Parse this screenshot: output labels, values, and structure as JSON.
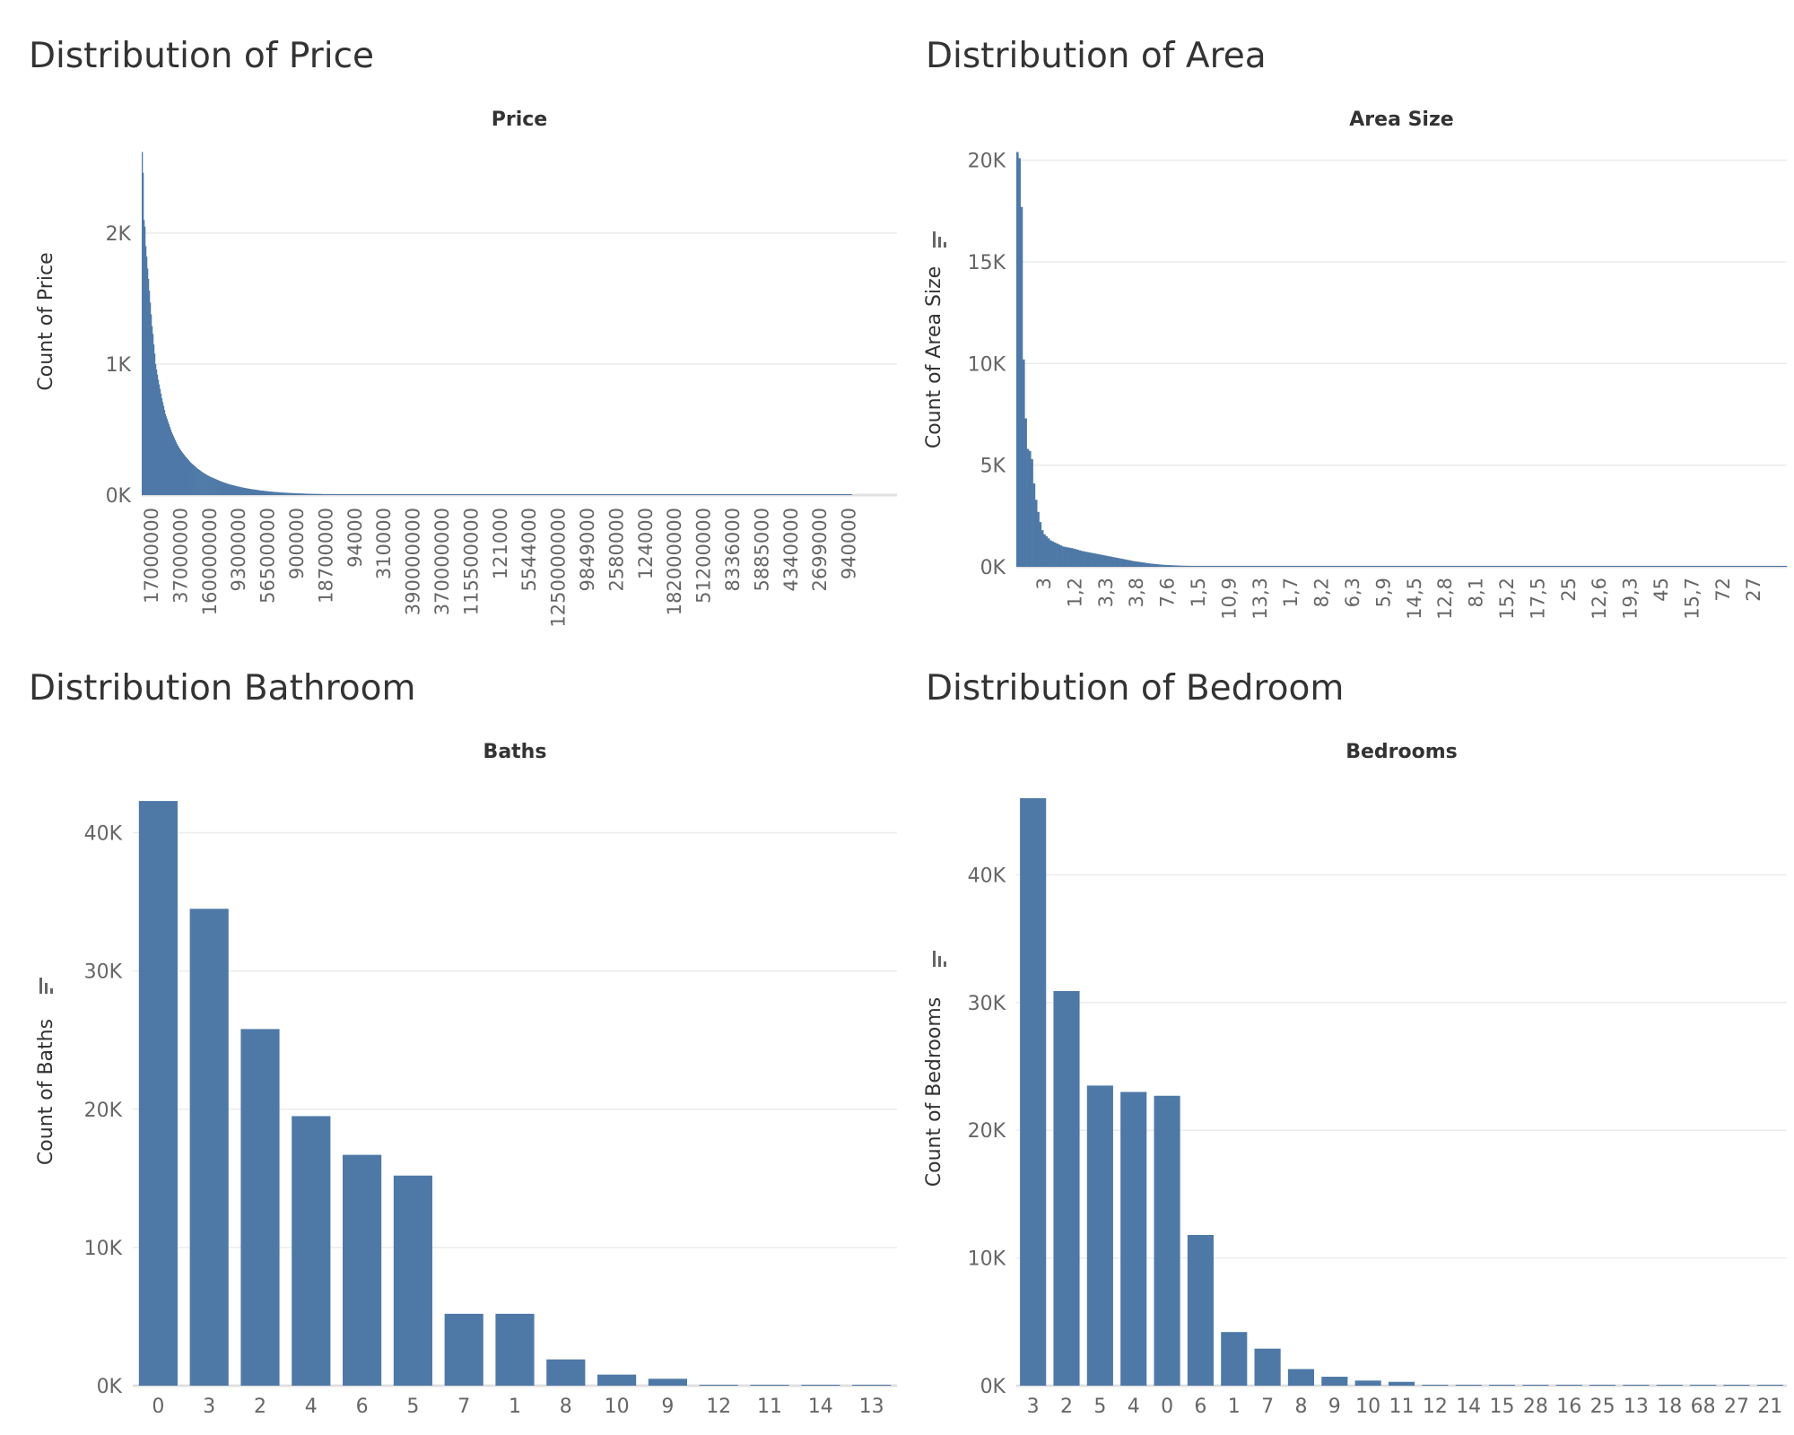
{
  "theme": {
    "bar_color": "#4e79a7",
    "grid_color": "#ebebeb",
    "text_color": "#333333",
    "tick_color": "#666666"
  },
  "chart_data": [
    {
      "panel_title": "Distribution of Price",
      "type": "bar",
      "title": "Price",
      "xlabel": "",
      "ylabel": "Count of Price",
      "ylim": [
        0,
        2650
      ],
      "yticks": [
        0,
        1000,
        2000
      ],
      "ytick_labels": [
        "0K",
        "1K",
        "2K"
      ],
      "sort_icon": false,
      "grid": true,
      "x_tick_labels": [
        "17000000",
        "37000000",
        "160000000",
        "9300000",
        "56500000",
        "900000",
        "18700000",
        "94000",
        "310000",
        "390000000",
        "370000000",
        "115500000",
        "121000",
        "5544000",
        "1250000000",
        "9849000",
        "2580000",
        "124000",
        "182000000",
        "51200000",
        "8336000",
        "5885000",
        "4340000",
        "2699000",
        "940000"
      ],
      "values": [
        2620,
        2460,
        2100,
        2050,
        1900,
        1820,
        1730,
        1650,
        1560,
        1470,
        1380,
        1290,
        1230,
        1150,
        1080,
        1000,
        960,
        920,
        880,
        845,
        810,
        775,
        740,
        710,
        680,
        650,
        620,
        600,
        580,
        560,
        540,
        520,
        500,
        480,
        465,
        450,
        435,
        420,
        405,
        390,
        378,
        366,
        355,
        344,
        334,
        325,
        316,
        307,
        298,
        290,
        282,
        274,
        266,
        258,
        250,
        244,
        238,
        232,
        226,
        220,
        214,
        208,
        202,
        197,
        192,
        187,
        182,
        177,
        172,
        168,
        164,
        160,
        156,
        152,
        148,
        144,
        141,
        138,
        135,
        132,
        129,
        126,
        123,
        120,
        117,
        114,
        111,
        108,
        105,
        103,
        100,
        98,
        95,
        93,
        91,
        88,
        86,
        84,
        82,
        80,
        78,
        76,
        75,
        73,
        71,
        70,
        68,
        66,
        65,
        63,
        62,
        60,
        59,
        57,
        56,
        55,
        53,
        52,
        51,
        50,
        48,
        47,
        46,
        45,
        44,
        43,
        42,
        41,
        40,
        39,
        38,
        37,
        36,
        35,
        34,
        34,
        33,
        32,
        31,
        30,
        30,
        29,
        28,
        28,
        27,
        26,
        26,
        25,
        24,
        24,
        23,
        23,
        22,
        22,
        21,
        21,
        20,
        20,
        19,
        19,
        18,
        18,
        18,
        17,
        17,
        16,
        16,
        16,
        15,
        15,
        15,
        14,
        14,
        14,
        13,
        13,
        13,
        12,
        12,
        12,
        12,
        11,
        11,
        11,
        11,
        10,
        10,
        10,
        10,
        10,
        9,
        9,
        9,
        9,
        9,
        8,
        8,
        8,
        8,
        8,
        8,
        8,
        7,
        7,
        7,
        7,
        7,
        7,
        7,
        6,
        6,
        6,
        6,
        6,
        6,
        6,
        6,
        5,
        5,
        5,
        5,
        5,
        5,
        5,
        5,
        5,
        5,
        4,
        4,
        4,
        4,
        4,
        4,
        4,
        4,
        4,
        4,
        4,
        4,
        3,
        3,
        3,
        3,
        3,
        3,
        3,
        3,
        3,
        3,
        3,
        3,
        3,
        3,
        3,
        3,
        3,
        3,
        3,
        3,
        2,
        2,
        2,
        2,
        2,
        2,
        2,
        2,
        2,
        2,
        2,
        2,
        2,
        2,
        2,
        2,
        2,
        2,
        2,
        2,
        2,
        2,
        2,
        2,
        2,
        2,
        2,
        2,
        2,
        2,
        2,
        2,
        2,
        2,
        2,
        2,
        2,
        2,
        2,
        2,
        1,
        1,
        1,
        1,
        1,
        1,
        1,
        1,
        1,
        1,
        1,
        1,
        1,
        1,
        1,
        1,
        1,
        1,
        1,
        1,
        1,
        1,
        1,
        1,
        1,
        1,
        1,
        1,
        1,
        1,
        1,
        1,
        1,
        1,
        1,
        1,
        1,
        1,
        1,
        1,
        1,
        1,
        1,
        1,
        1,
        1,
        1,
        1,
        1,
        1,
        1,
        1,
        1,
        1,
        1,
        1,
        1,
        1,
        1,
        1,
        1,
        1,
        1,
        1,
        1,
        1,
        1,
        1,
        1,
        1,
        1,
        1,
        1,
        1,
        1,
        1,
        1,
        1,
        1,
        1,
        1,
        1,
        1,
        1,
        1,
        1,
        1,
        1,
        1,
        1,
        1,
        1,
        1,
        1,
        1,
        1,
        1,
        1,
        1,
        1,
        1,
        1,
        1,
        1,
        1,
        1,
        1,
        1,
        1,
        1,
        1,
        1,
        1,
        1,
        1,
        1,
        1,
        1,
        1,
        1,
        1,
        1,
        1,
        1,
        1,
        1,
        1,
        1,
        1,
        1,
        1,
        1,
        1,
        1,
        1,
        1,
        1,
        1,
        1,
        1,
        1,
        1,
        1,
        1,
        1,
        1,
        1,
        1,
        1,
        1,
        1,
        1,
        1,
        1,
        1,
        1,
        1,
        1,
        1,
        1,
        1,
        1,
        1,
        1,
        1,
        1,
        1,
        1,
        1,
        1,
        1,
        1,
        1,
        1,
        1,
        1,
        1,
        1,
        1,
        1,
        1,
        1,
        1,
        1,
        1,
        1,
        1,
        1,
        1,
        1,
        1,
        1,
        1,
        1,
        1,
        1,
        1,
        1,
        1,
        1,
        1,
        1,
        1,
        1,
        1,
        1,
        1,
        1,
        1,
        1,
        1,
        1,
        1,
        1,
        1,
        1,
        1,
        1,
        1,
        1,
        1,
        1,
        1,
        1,
        1,
        1,
        1,
        1,
        1,
        1,
        1,
        1,
        1,
        1,
        1,
        1,
        1,
        1,
        1,
        1,
        1,
        1,
        1,
        1,
        1,
        1,
        1,
        1,
        1,
        1,
        1,
        1,
        1,
        1,
        1,
        1,
        1,
        1,
        1,
        1,
        1,
        1,
        1,
        1,
        1,
        1,
        1,
        1,
        1,
        1,
        1,
        1,
        1,
        1,
        1,
        1,
        1,
        1,
        1,
        1,
        1,
        1,
        1,
        1,
        1,
        1,
        1,
        1,
        1,
        1,
        1,
        1,
        1,
        1,
        1,
        1,
        1,
        1,
        1,
        1,
        1,
        1,
        1,
        1,
        1,
        1,
        1,
        1,
        1,
        1,
        1,
        1,
        1,
        1,
        1,
        1,
        1,
        1,
        1,
        1,
        1,
        1,
        1,
        1,
        1,
        1,
        1,
        1,
        1,
        1,
        1,
        1,
        1,
        1,
        1,
        1,
        1,
        1,
        1,
        1,
        1,
        1,
        1,
        1,
        1,
        1,
        1,
        1,
        1,
        1,
        1,
        1,
        1,
        1,
        1,
        1,
        1,
        1,
        1,
        1,
        1,
        1,
        1,
        1,
        1,
        1,
        1,
        1,
        1,
        1,
        1,
        1,
        1,
        1,
        1,
        1,
        1,
        1,
        1,
        1,
        1,
        1,
        1,
        1,
        1,
        1,
        1,
        1,
        1,
        1,
        1,
        1,
        1,
        1,
        1,
        1,
        1,
        1,
        1,
        1,
        1,
        1,
        1,
        1,
        1,
        1,
        1,
        1,
        1,
        1,
        1,
        1,
        1,
        1,
        1,
        1,
        1,
        1,
        1,
        1,
        1,
        1,
        1,
        1,
        1,
        1,
        1,
        1,
        1,
        1,
        1,
        1,
        1,
        1,
        1,
        1,
        1,
        1,
        1,
        1,
        1,
        1,
        1,
        1,
        1,
        1,
        1,
        1,
        1,
        1,
        1,
        1,
        1,
        1,
        1,
        1,
        1,
        1,
        1,
        1,
        1,
        1,
        1,
        1,
        1,
        1,
        1,
        1,
        1,
        1,
        1,
        1,
        1,
        1,
        1,
        1,
        1,
        1,
        1,
        1,
        1,
        1,
        1,
        1,
        1,
        1,
        1,
        1,
        1,
        1,
        1,
        1,
        1,
        1,
        1,
        1,
        1
      ]
    },
    {
      "panel_title": "Distribution of Area",
      "type": "bar",
      "title": "Area Size",
      "xlabel": "",
      "ylabel": "Count of Area Size",
      "ylim": [
        0,
        20600
      ],
      "yticks": [
        0,
        5000,
        10000,
        15000,
        20000
      ],
      "ytick_labels": [
        "0K",
        "5K",
        "10K",
        "15K",
        "20K"
      ],
      "sort_icon": true,
      "grid": true,
      "x_tick_labels": [
        "3",
        "1,2",
        "3,3",
        "3,8",
        "7,6",
        "1,5",
        "10,9",
        "13,3",
        "1,7",
        "8,2",
        "6,3",
        "5,9",
        "14,5",
        "12,8",
        "8,1",
        "15,2",
        "17,5",
        "25",
        "12,6",
        "19,3",
        "45",
        "15,7",
        "72",
        "27"
      ],
      "values": [
        20400,
        20100,
        17700,
        10200,
        7300,
        5800,
        5700,
        5300,
        4100,
        3300,
        2700,
        2200,
        1800,
        1600,
        1500,
        1400,
        1300,
        1250,
        1200,
        1150,
        1100,
        1050,
        1000,
        980,
        960,
        940,
        920,
        900,
        870,
        840,
        810,
        780,
        760,
        740,
        720,
        700,
        680,
        660,
        640,
        620,
        600,
        580,
        560,
        540,
        520,
        500,
        480,
        460,
        440,
        420,
        400,
        380,
        360,
        340,
        320,
        300,
        280,
        265,
        250,
        235,
        220,
        205,
        190,
        175,
        160,
        150,
        140,
        130,
        120,
        110,
        100,
        95,
        90,
        85,
        80,
        75,
        70,
        65,
        60,
        55,
        50,
        48,
        46,
        44,
        42,
        40,
        38,
        36,
        34,
        32,
        30,
        29,
        28,
        27,
        26,
        25,
        24,
        23,
        22,
        21,
        20,
        19,
        18,
        17,
        16,
        15,
        14,
        13,
        12,
        11,
        10,
        9,
        9,
        8,
        8,
        7,
        7,
        6,
        6,
        5,
        5,
        5,
        4,
        4,
        4,
        4,
        3,
        3,
        3,
        3,
        3,
        3,
        2,
        2,
        2,
        2,
        2,
        2,
        2,
        2,
        2,
        2,
        2,
        2,
        2,
        2,
        1,
        1,
        1,
        1,
        1,
        1,
        1,
        1,
        1,
        1,
        1,
        1,
        1,
        1,
        1,
        1,
        1,
        1,
        1,
        1,
        1,
        1,
        1,
        1,
        1,
        1,
        1,
        1,
        1,
        1,
        1,
        1,
        1,
        1,
        1,
        1,
        1,
        1,
        1,
        1,
        1,
        1,
        1,
        1,
        1,
        1,
        1,
        1,
        1,
        1,
        1,
        1,
        1,
        1,
        1,
        1,
        1,
        1,
        1,
        1,
        1,
        1,
        1,
        1,
        1,
        1,
        1,
        1,
        1,
        1,
        1,
        1,
        1,
        1,
        1,
        1,
        1,
        1,
        1,
        1,
        1,
        1,
        1,
        1,
        1,
        1,
        1,
        1,
        1,
        1,
        1,
        1,
        1,
        1,
        1,
        1,
        1,
        1,
        1,
        1,
        1,
        1,
        1,
        1,
        1,
        1,
        1,
        1,
        1,
        1,
        1,
        1,
        1,
        1,
        1,
        1,
        1,
        1,
        1,
        1,
        1,
        1,
        1,
        1,
        1,
        1,
        1,
        1,
        1,
        1,
        1,
        1,
        1,
        1,
        1,
        1,
        1,
        1,
        1,
        1,
        1,
        1,
        1,
        1,
        1,
        1,
        1,
        1,
        1,
        1,
        1,
        1,
        1,
        1,
        1,
        1,
        1,
        1,
        1,
        1,
        1,
        1,
        1,
        1,
        1,
        1,
        1,
        1,
        1,
        1,
        1,
        1,
        1,
        1,
        1,
        1,
        1,
        1,
        1,
        1,
        1,
        1,
        1,
        1,
        1,
        1,
        1,
        1,
        1,
        1,
        1,
        1,
        1,
        1,
        1,
        1,
        1,
        1,
        1,
        1,
        1,
        1,
        1,
        1,
        1,
        1,
        1,
        1,
        1,
        1,
        1,
        1,
        1,
        1,
        1,
        1,
        1,
        1,
        1,
        1,
        1,
        1,
        1,
        1
      ]
    },
    {
      "panel_title": "Distribution Bathroom",
      "type": "bar",
      "title": "Baths",
      "xlabel": "",
      "ylabel": "Count of Baths",
      "ylim": [
        0,
        42500
      ],
      "yticks": [
        0,
        10000,
        20000,
        30000,
        40000
      ],
      "ytick_labels": [
        "0K",
        "10K",
        "20K",
        "30K",
        "40K"
      ],
      "sort_icon": true,
      "grid": true,
      "categories": [
        "0",
        "3",
        "2",
        "4",
        "6",
        "5",
        "7",
        "1",
        "8",
        "10",
        "9",
        "12",
        "11",
        "14",
        "13"
      ],
      "values": [
        42300,
        34500,
        25800,
        19500,
        16700,
        15200,
        5200,
        5200,
        1900,
        800,
        500,
        50,
        30,
        15,
        10
      ]
    },
    {
      "panel_title": "Distribution of Bedroom",
      "type": "bar",
      "title": "Bedrooms",
      "xlabel": "",
      "ylabel": "Count of Bedrooms",
      "ylim": [
        0,
        46000
      ],
      "yticks": [
        0,
        10000,
        20000,
        30000,
        40000
      ],
      "ytick_labels": [
        "0K",
        "10K",
        "20K",
        "30K",
        "40K"
      ],
      "sort_icon": true,
      "grid": true,
      "categories": [
        "3",
        "2",
        "5",
        "4",
        "0",
        "6",
        "1",
        "7",
        "8",
        "9",
        "10",
        "11",
        "12",
        "14",
        "15",
        "28",
        "16",
        "25",
        "13",
        "18",
        "68",
        "27",
        "21"
      ],
      "values": [
        46000,
        30900,
        23500,
        23000,
        22700,
        11800,
        4200,
        2900,
        1300,
        700,
        400,
        300,
        40,
        20,
        15,
        10,
        10,
        8,
        8,
        6,
        5,
        5,
        4
      ]
    }
  ]
}
